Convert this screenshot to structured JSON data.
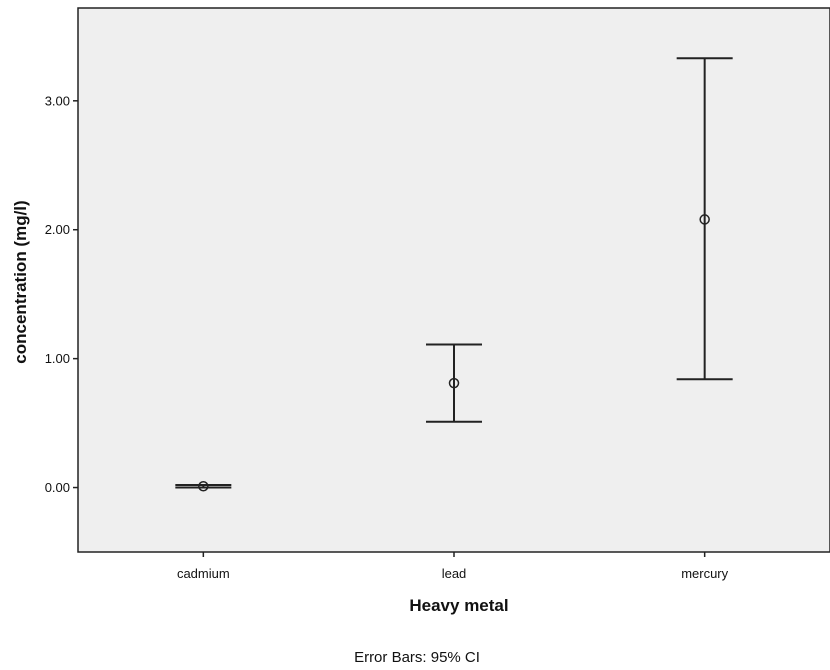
{
  "chart_data": {
    "type": "errorbar",
    "categories": [
      "cadmium",
      "lead",
      "mercury"
    ],
    "series": [
      {
        "mean": [
          0.01,
          0.81,
          2.08
        ],
        "ci_lower": [
          0.0,
          0.51,
          0.84
        ],
        "ci_upper": [
          0.02,
          1.11,
          3.33
        ]
      }
    ],
    "xlabel": "Heavy metal",
    "ylabel": "concentration (mg/l)",
    "ylim": [
      -0.5,
      3.72
    ],
    "yticks": [
      0.0,
      1.0,
      2.0,
      3.0
    ],
    "ytick_labels": [
      "0.00",
      "1.00",
      "2.00",
      "3.00"
    ],
    "footnote": "Error Bars: 95% CI",
    "grid": false,
    "colors": {
      "plot_background": "#efefef",
      "line": "#222222"
    }
  }
}
